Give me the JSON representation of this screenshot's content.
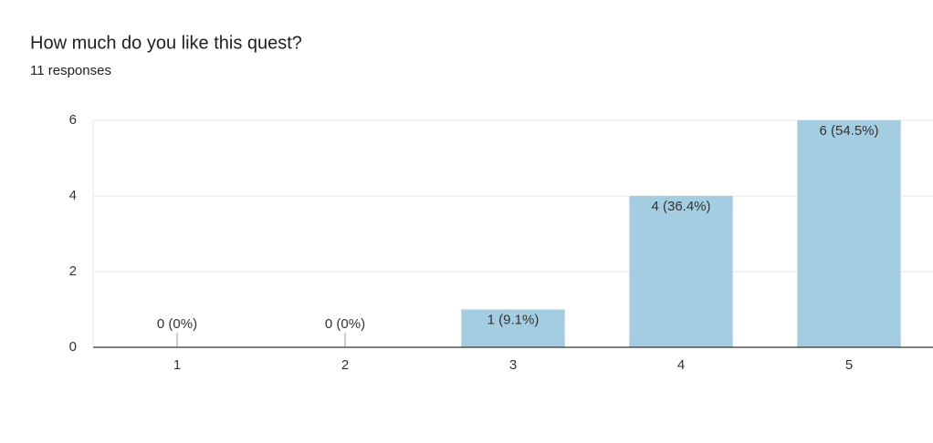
{
  "chart_data": {
    "type": "bar",
    "title": "How much do you like this quest?",
    "subtitle": "11 responses",
    "categories": [
      "1",
      "2",
      "3",
      "4",
      "5"
    ],
    "values": [
      0,
      0,
      1,
      4,
      6
    ],
    "value_labels": [
      "0 (0%)",
      "0 (0%)",
      "1 (9.1%)",
      "4 (36.4%)",
      "6 (54.5%)"
    ],
    "color": "#a4cde1",
    "ylim": [
      0,
      6
    ],
    "yticks": [
      0,
      2,
      4,
      6
    ],
    "grid": true
  }
}
